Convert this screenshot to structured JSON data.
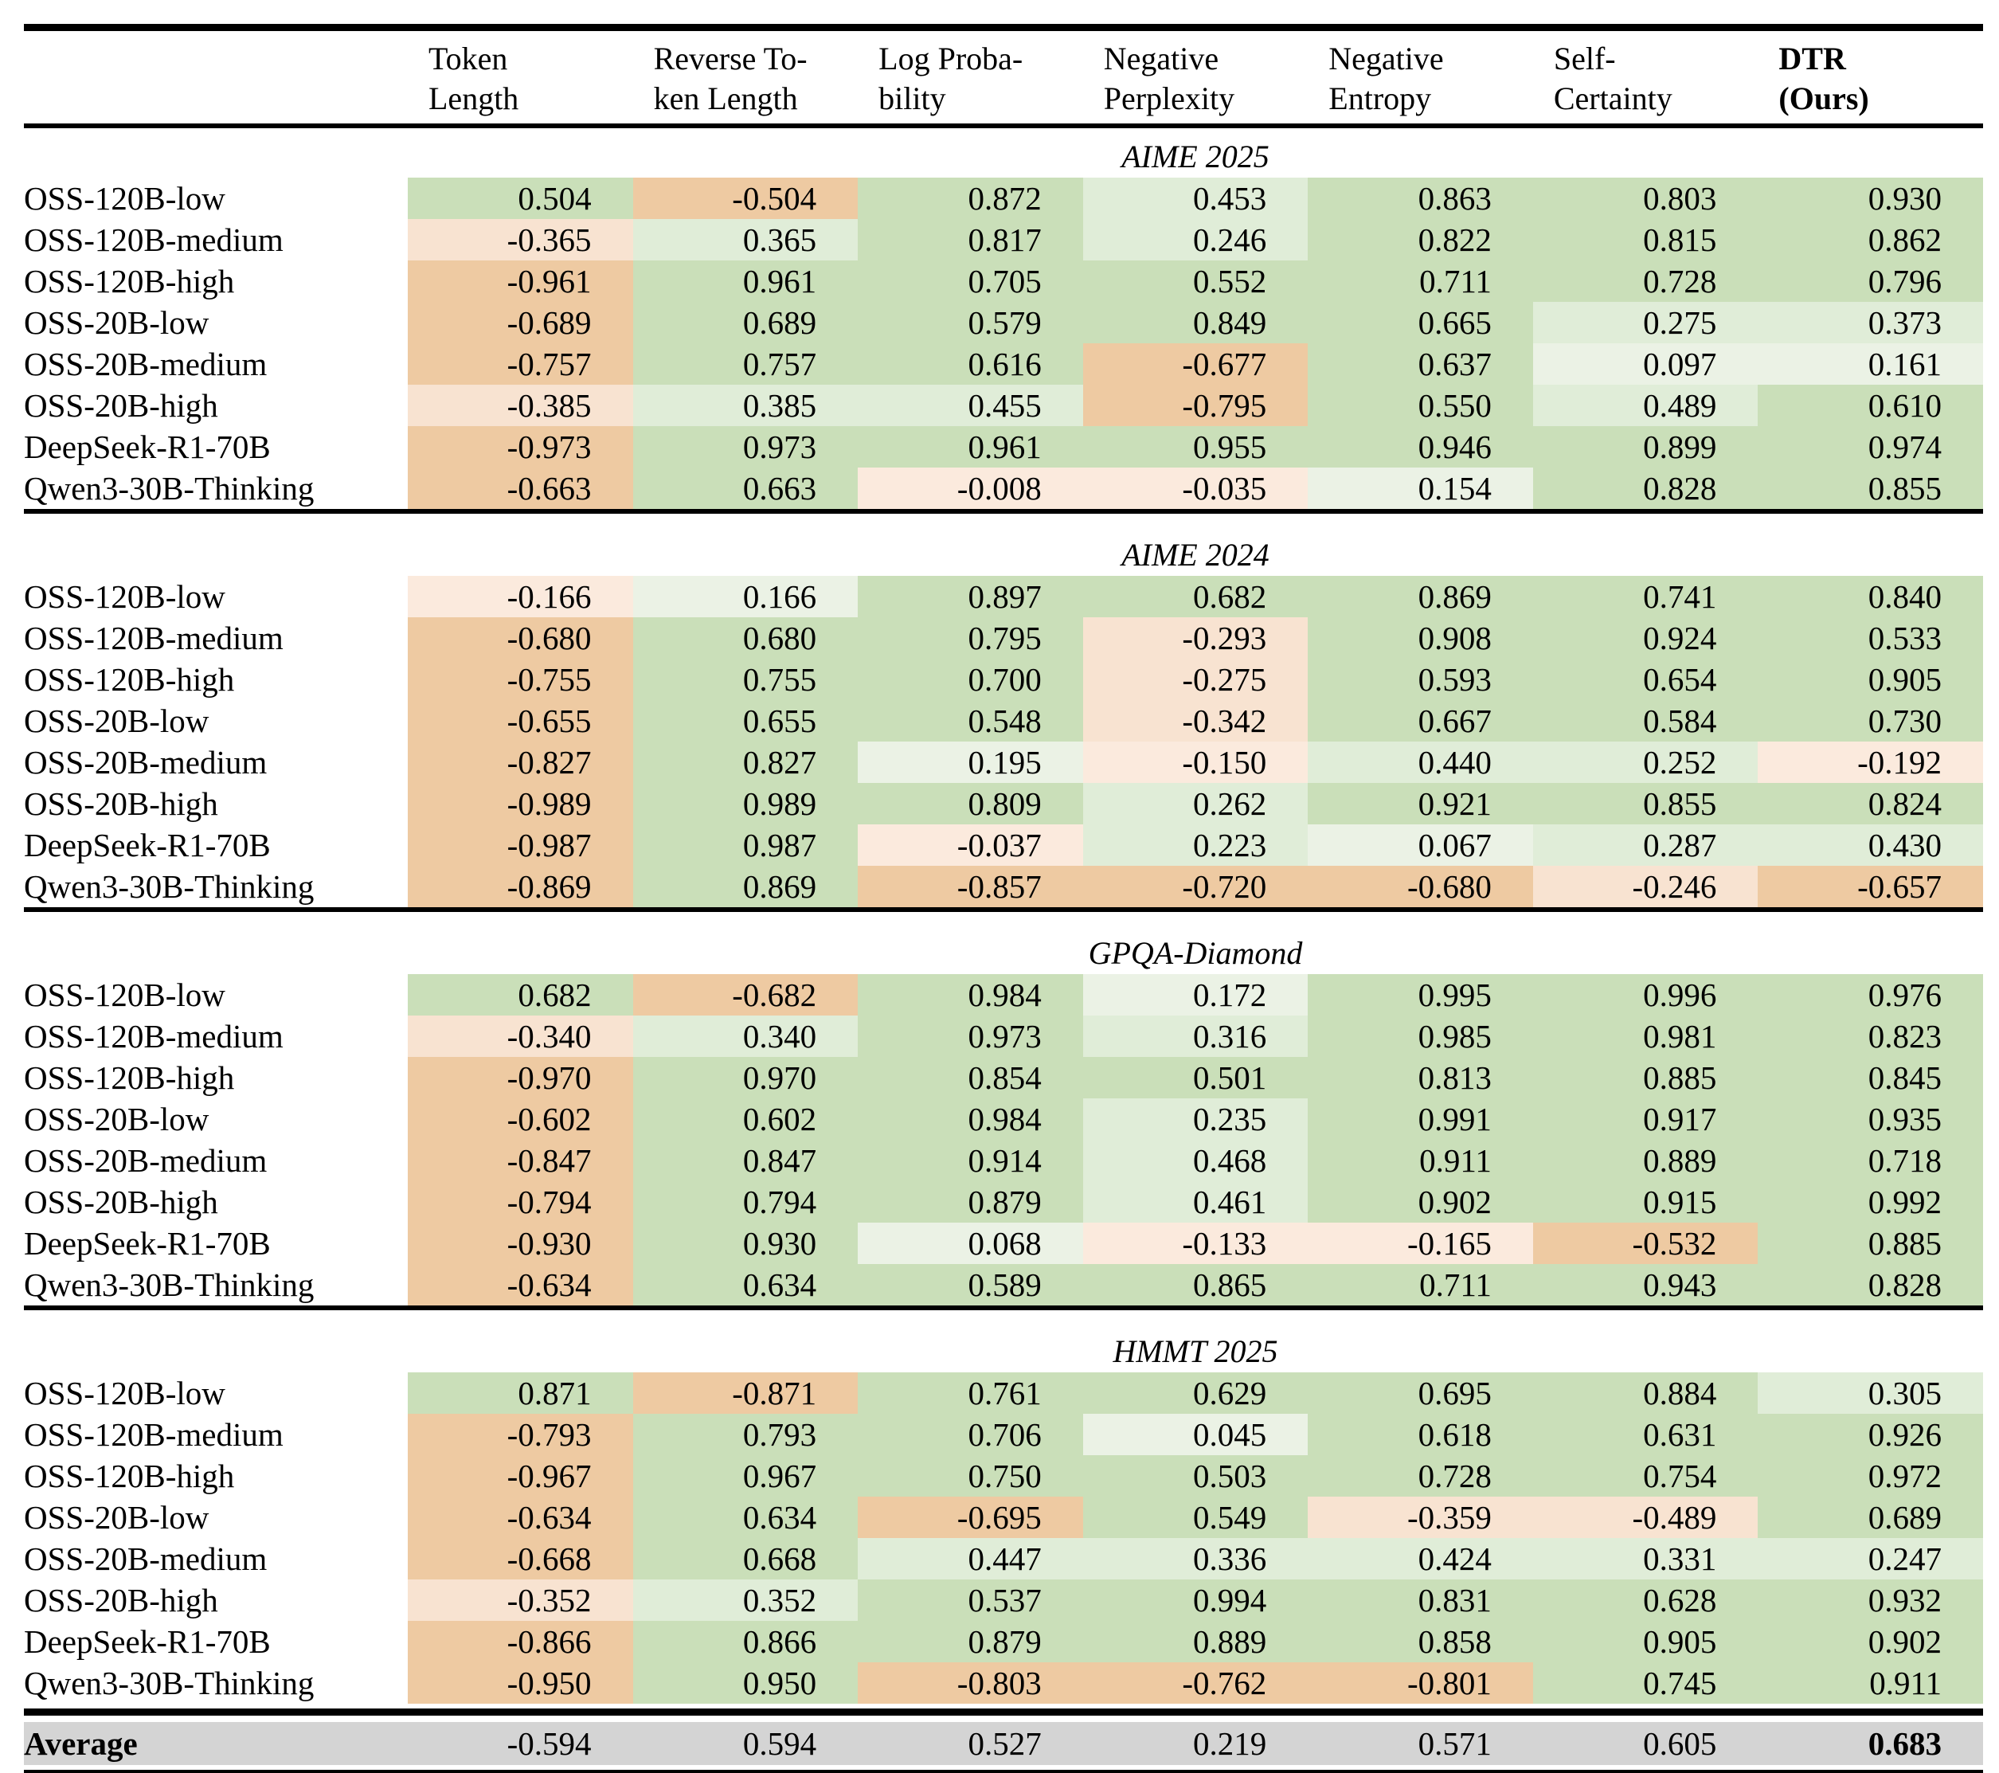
{
  "columns": [
    {
      "line1": "Token",
      "line2": "Length",
      "bold": false
    },
    {
      "line1": "Reverse To-",
      "line2": "ken Length",
      "bold": false
    },
    {
      "line1": "Log Proba-",
      "line2": "bility",
      "bold": false
    },
    {
      "line1": "Negative",
      "line2": "Perplexity",
      "bold": false
    },
    {
      "line1": "Negative",
      "line2": "Entropy",
      "bold": false
    },
    {
      "line1": "Self-",
      "line2": "Certainty",
      "bold": false
    },
    {
      "line1": "DTR",
      "line2": "(Ours)",
      "bold": true
    }
  ],
  "sections": [
    {
      "title": "AIME 2025",
      "rows": [
        {
          "label": "OSS-120B-low",
          "values": [
            "0.504",
            "-0.504",
            "0.872",
            "0.453",
            "0.863",
            "0.803",
            "0.930"
          ]
        },
        {
          "label": "OSS-120B-medium",
          "values": [
            "-0.365",
            "0.365",
            "0.817",
            "0.246",
            "0.822",
            "0.815",
            "0.862"
          ]
        },
        {
          "label": "OSS-120B-high",
          "values": [
            "-0.961",
            "0.961",
            "0.705",
            "0.552",
            "0.711",
            "0.728",
            "0.796"
          ]
        },
        {
          "label": "OSS-20B-low",
          "values": [
            "-0.689",
            "0.689",
            "0.579",
            "0.849",
            "0.665",
            "0.275",
            "0.373"
          ]
        },
        {
          "label": "OSS-20B-medium",
          "values": [
            "-0.757",
            "0.757",
            "0.616",
            "-0.677",
            "0.637",
            "0.097",
            "0.161"
          ]
        },
        {
          "label": "OSS-20B-high",
          "values": [
            "-0.385",
            "0.385",
            "0.455",
            "-0.795",
            "0.550",
            "0.489",
            "0.610"
          ]
        },
        {
          "label": "DeepSeek-R1-70B",
          "values": [
            "-0.973",
            "0.973",
            "0.961",
            "0.955",
            "0.946",
            "0.899",
            "0.974"
          ]
        },
        {
          "label": "Qwen3-30B-Thinking",
          "values": [
            "-0.663",
            "0.663",
            "-0.008",
            "-0.035",
            "0.154",
            "0.828",
            "0.855"
          ]
        }
      ]
    },
    {
      "title": "AIME 2024",
      "rows": [
        {
          "label": "OSS-120B-low",
          "values": [
            "-0.166",
            "0.166",
            "0.897",
            "0.682",
            "0.869",
            "0.741",
            "0.840"
          ]
        },
        {
          "label": "OSS-120B-medium",
          "values": [
            "-0.680",
            "0.680",
            "0.795",
            "-0.293",
            "0.908",
            "0.924",
            "0.533"
          ]
        },
        {
          "label": "OSS-120B-high",
          "values": [
            "-0.755",
            "0.755",
            "0.700",
            "-0.275",
            "0.593",
            "0.654",
            "0.905"
          ]
        },
        {
          "label": "OSS-20B-low",
          "values": [
            "-0.655",
            "0.655",
            "0.548",
            "-0.342",
            "0.667",
            "0.584",
            "0.730"
          ]
        },
        {
          "label": "OSS-20B-medium",
          "values": [
            "-0.827",
            "0.827",
            "0.195",
            "-0.150",
            "0.440",
            "0.252",
            "-0.192"
          ]
        },
        {
          "label": "OSS-20B-high",
          "values": [
            "-0.989",
            "0.989",
            "0.809",
            "0.262",
            "0.921",
            "0.855",
            "0.824"
          ]
        },
        {
          "label": "DeepSeek-R1-70B",
          "values": [
            "-0.987",
            "0.987",
            "-0.037",
            "0.223",
            "0.067",
            "0.287",
            "0.430"
          ]
        },
        {
          "label": "Qwen3-30B-Thinking",
          "values": [
            "-0.869",
            "0.869",
            "-0.857",
            "-0.720",
            "-0.680",
            "-0.246",
            "-0.657"
          ]
        }
      ]
    },
    {
      "title": "GPQA-Diamond",
      "rows": [
        {
          "label": "OSS-120B-low",
          "values": [
            "0.682",
            "-0.682",
            "0.984",
            "0.172",
            "0.995",
            "0.996",
            "0.976"
          ]
        },
        {
          "label": "OSS-120B-medium",
          "values": [
            "-0.340",
            "0.340",
            "0.973",
            "0.316",
            "0.985",
            "0.981",
            "0.823"
          ]
        },
        {
          "label": "OSS-120B-high",
          "values": [
            "-0.970",
            "0.970",
            "0.854",
            "0.501",
            "0.813",
            "0.885",
            "0.845"
          ]
        },
        {
          "label": "OSS-20B-low",
          "values": [
            "-0.602",
            "0.602",
            "0.984",
            "0.235",
            "0.991",
            "0.917",
            "0.935"
          ]
        },
        {
          "label": "OSS-20B-medium",
          "values": [
            "-0.847",
            "0.847",
            "0.914",
            "0.468",
            "0.911",
            "0.889",
            "0.718"
          ]
        },
        {
          "label": "OSS-20B-high",
          "values": [
            "-0.794",
            "0.794",
            "0.879",
            "0.461",
            "0.902",
            "0.915",
            "0.992"
          ]
        },
        {
          "label": "DeepSeek-R1-70B",
          "values": [
            "-0.930",
            "0.930",
            "0.068",
            "-0.133",
            "-0.165",
            "-0.532",
            "0.885"
          ]
        },
        {
          "label": "Qwen3-30B-Thinking",
          "values": [
            "-0.634",
            "0.634",
            "0.589",
            "0.865",
            "0.711",
            "0.943",
            "0.828"
          ]
        }
      ]
    },
    {
      "title": "HMMT 2025",
      "rows": [
        {
          "label": "OSS-120B-low",
          "values": [
            "0.871",
            "-0.871",
            "0.761",
            "0.629",
            "0.695",
            "0.884",
            "0.305"
          ]
        },
        {
          "label": "OSS-120B-medium",
          "values": [
            "-0.793",
            "0.793",
            "0.706",
            "0.045",
            "0.618",
            "0.631",
            "0.926"
          ]
        },
        {
          "label": "OSS-120B-high",
          "values": [
            "-0.967",
            "0.967",
            "0.750",
            "0.503",
            "0.728",
            "0.754",
            "0.972"
          ]
        },
        {
          "label": "OSS-20B-low",
          "values": [
            "-0.634",
            "0.634",
            "-0.695",
            "0.549",
            "-0.359",
            "-0.489",
            "0.689"
          ]
        },
        {
          "label": "OSS-20B-medium",
          "values": [
            "-0.668",
            "0.668",
            "0.447",
            "0.336",
            "0.424",
            "0.331",
            "0.247"
          ]
        },
        {
          "label": "OSS-20B-high",
          "values": [
            "-0.352",
            "0.352",
            "0.537",
            "0.994",
            "0.831",
            "0.628",
            "0.932"
          ]
        },
        {
          "label": "DeepSeek-R1-70B",
          "values": [
            "-0.866",
            "0.866",
            "0.879",
            "0.889",
            "0.858",
            "0.905",
            "0.902"
          ]
        },
        {
          "label": "Qwen3-30B-Thinking",
          "values": [
            "-0.950",
            "0.950",
            "-0.803",
            "-0.762",
            "-0.801",
            "0.745",
            "0.911"
          ]
        }
      ]
    }
  ],
  "average": {
    "label": "Average",
    "values": [
      "-0.594",
      "0.594",
      "0.527",
      "0.219",
      "0.571",
      "0.605",
      "0.683"
    ],
    "bold_last_value": true
  },
  "colors": {
    "green_levels": [
      "#ebf2e5",
      "#e0edd8",
      "#cadfb9"
    ],
    "orange_levels": [
      "#fbeadd",
      "#f8e3d1",
      "#eecaa2"
    ],
    "level_thresholds": [
      0.2,
      0.5
    ],
    "average_row_bg": "#d4d4d4",
    "rule_color": "#000000"
  }
}
